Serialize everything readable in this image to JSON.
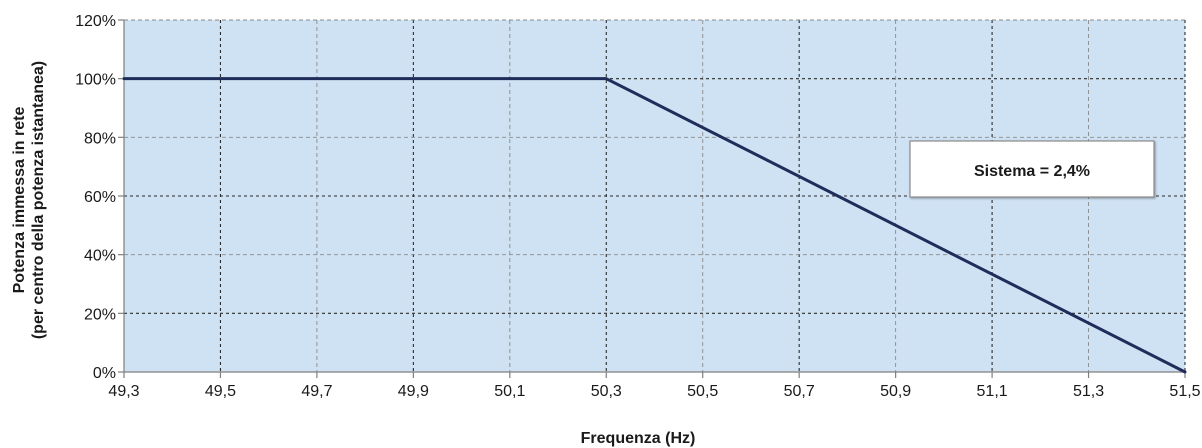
{
  "chart_data": {
    "type": "line",
    "title": "",
    "xlabel": "Frequenza (Hz)",
    "ylabel_line1": "Potenza immessa in rete",
    "ylabel_line2": "(per centro della potenza istantanea)",
    "x_ticks": [
      "49,3",
      "49,5",
      "49,7",
      "49,9",
      "50,1",
      "50,3",
      "50,5",
      "50,7",
      "50,9",
      "51,1",
      "51,3",
      "51,5"
    ],
    "x_tick_values": [
      49.3,
      49.5,
      49.7,
      49.9,
      50.1,
      50.3,
      50.5,
      50.7,
      50.9,
      51.1,
      51.3,
      51.5
    ],
    "y_ticks": [
      "0%",
      "20%",
      "40%",
      "60%",
      "80%",
      "100%",
      "120%"
    ],
    "y_tick_values": [
      0,
      20,
      40,
      60,
      80,
      100,
      120
    ],
    "xlim": [
      49.3,
      51.5
    ],
    "ylim": [
      0,
      120
    ],
    "grid": true,
    "series": [
      {
        "x": [
          49.3,
          50.3,
          51.5
        ],
        "y": [
          100,
          100,
          0
        ]
      }
    ],
    "annotation": {
      "text": "Sistema = 2,4%"
    },
    "colors": {
      "plot_background": "#cfe2f3",
      "line": "#1f2d5a",
      "grid_major": "#2b2b2b",
      "grid_minor": "#8a8a8a",
      "axis": "#7f7f7f"
    }
  }
}
